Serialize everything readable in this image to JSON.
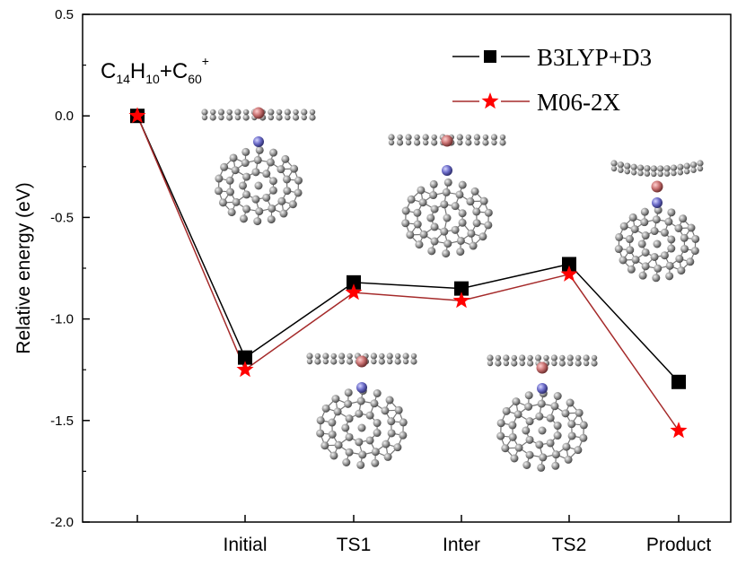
{
  "chart_data": {
    "type": "line",
    "categories": [
      "",
      "Initial",
      "TS1",
      "Inter",
      "TS2",
      "Product"
    ],
    "ylabel": "Relative energy (eV)",
    "xlabel": "",
    "ylim": [
      -2.0,
      0.5
    ],
    "yticks": [
      "0.5",
      "0.0",
      "-0.5",
      "-1.0",
      "-1.5",
      "-2.0"
    ],
    "ytick_values": [
      0.5,
      0.0,
      -0.5,
      -1.0,
      -1.5,
      -2.0
    ],
    "grid": false,
    "legend_position": "top-right",
    "annotation": {
      "parts": [
        "C",
        "14",
        "H",
        "10",
        "+C",
        "60",
        "+"
      ]
    },
    "series": [
      {
        "name": "B3LYP+D3",
        "marker": "square",
        "color": "#000000",
        "values": [
          0.0,
          -1.19,
          -0.82,
          -0.85,
          -0.73,
          -1.31
        ]
      },
      {
        "name": "M06-2X",
        "marker": "star",
        "color": "#ff0000",
        "line_color": "#a52a2a",
        "values": [
          0.0,
          -1.25,
          -0.87,
          -0.91,
          -0.78,
          -1.55
        ]
      }
    ]
  }
}
